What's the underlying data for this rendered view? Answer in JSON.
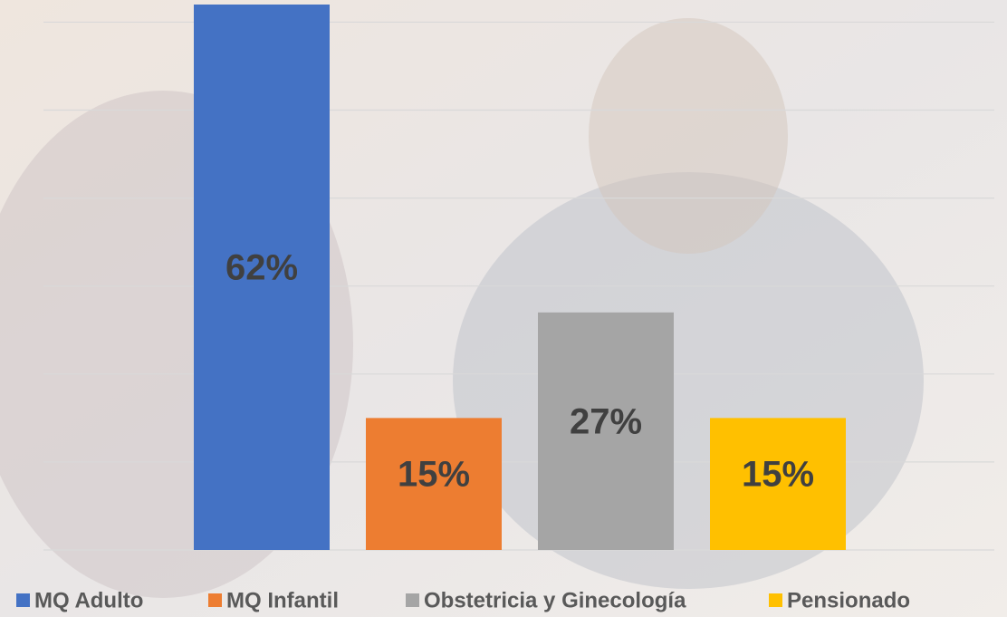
{
  "chart_data": {
    "type": "bar",
    "categories": [
      "MQ Adulto",
      "MQ Infantil",
      "Obstetricia y Ginecología",
      "Pensionado"
    ],
    "values": [
      62,
      15,
      27,
      15
    ],
    "value_labels": [
      "62%",
      "15%",
      "27%",
      "15%"
    ],
    "colors": [
      "#4472c4",
      "#ed7d31",
      "#a5a5a5",
      "#ffc000"
    ],
    "ylim": [
      0,
      62
    ],
    "yticks": [
      0,
      10,
      20,
      30,
      40,
      50,
      60
    ],
    "grid": true
  }
}
